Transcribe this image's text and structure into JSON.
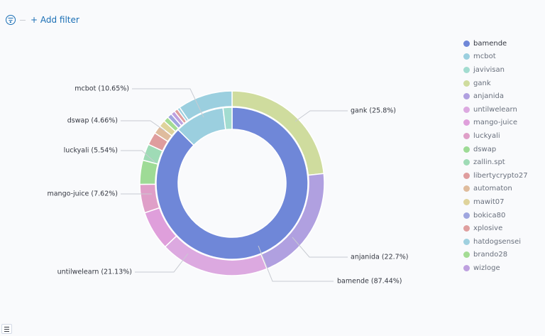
{
  "filter_bar": {
    "add_filter_label": "+ Add filter"
  },
  "chart_data": {
    "type": "pie",
    "title": "",
    "legend_position": "right",
    "inner_ring": {
      "slices": [
        {
          "name": "bamende",
          "value": 87.44,
          "color": "#6f87d8"
        },
        {
          "name": "mcbot",
          "value": 10.65,
          "color": "#9bcfdf"
        },
        {
          "name": "javivisan",
          "value": 1.91,
          "color": "#a2dcd0"
        }
      ]
    },
    "outer_ring": {
      "slices": [
        {
          "name": "gank",
          "value": 25.8,
          "color": "#cfdc9e"
        },
        {
          "name": "anjanida",
          "value": 22.7,
          "color": "#b0a0e0"
        },
        {
          "name": "untilwelearn",
          "value": 21.13,
          "color": "#dca9e0"
        },
        {
          "name": "mango-juice",
          "value": 7.62,
          "color": "#df9fdb"
        },
        {
          "name": "luckyali",
          "value": 5.54,
          "color": "#df9fc8"
        },
        {
          "name": "dswap",
          "value": 4.66,
          "color": "#9edb96"
        },
        {
          "name": "zallin.spt",
          "value": 3.2,
          "color": "#9fdbb6"
        },
        {
          "name": "libertycrypto27",
          "value": 2.5,
          "color": "#df9d9e"
        },
        {
          "name": "automaton",
          "value": 1.6,
          "color": "#dfbc9d"
        },
        {
          "name": "mawit07",
          "value": 1.3,
          "color": "#dfd39b"
        },
        {
          "name": "brando28",
          "value": 1.0,
          "color": "#a4dc94"
        },
        {
          "name": "bokica80",
          "value": 0.9,
          "color": "#9fa6df"
        },
        {
          "name": "wizloge",
          "value": 0.8,
          "color": "#bea0df"
        },
        {
          "name": "xplosive",
          "value": 0.7,
          "color": "#df9f9f"
        },
        {
          "name": "hatdogsensei",
          "value": 0.55,
          "color": "#9fd0df"
        },
        {
          "name": "mcbot",
          "value": 10.65,
          "color": "#9bcfdf"
        }
      ]
    },
    "labels": [
      {
        "text": "gank (25.8%)"
      },
      {
        "text": "anjanida (22.7%)"
      },
      {
        "text": "bamende (87.44%)"
      },
      {
        "text": "untilwelearn (21.13%)"
      },
      {
        "text": "mango-juice (7.62%)"
      },
      {
        "text": "luckyali (5.54%)"
      },
      {
        "text": "dswap (4.66%)"
      },
      {
        "text": "mcbot (10.65%)"
      }
    ],
    "legend": [
      {
        "name": "bamende",
        "color": "#6f87d8"
      },
      {
        "name": "mcbot",
        "color": "#9bcfdf"
      },
      {
        "name": "javivisan",
        "color": "#a2dcd0"
      },
      {
        "name": "gank",
        "color": "#cfdc9e"
      },
      {
        "name": "anjanida",
        "color": "#b0a0e0"
      },
      {
        "name": "untilwelearn",
        "color": "#dca9e0"
      },
      {
        "name": "mango-juice",
        "color": "#df9fdb"
      },
      {
        "name": "luckyali",
        "color": "#df9fc8"
      },
      {
        "name": "dswap",
        "color": "#9edb96"
      },
      {
        "name": "zallin.spt",
        "color": "#9fdbb6"
      },
      {
        "name": "libertycrypto27",
        "color": "#df9d9e"
      },
      {
        "name": "automaton",
        "color": "#dfbc9d"
      },
      {
        "name": "mawit07",
        "color": "#dfd39b"
      },
      {
        "name": "bokica80",
        "color": "#9fa6df"
      },
      {
        "name": "xplosive",
        "color": "#df9f9f"
      },
      {
        "name": "hatdogsensei",
        "color": "#9fd0df"
      },
      {
        "name": "brando28",
        "color": "#a4dc94"
      },
      {
        "name": "wizloge",
        "color": "#bea0df"
      }
    ]
  }
}
